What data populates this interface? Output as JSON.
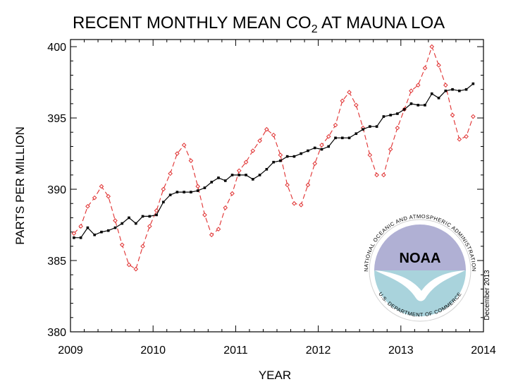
{
  "chart_data": {
    "type": "line",
    "title": "RECENT MONTHLY MEAN CO",
    "title_subscript": "2",
    "title_suffix": " AT MAUNA LOA",
    "xlabel": "YEAR",
    "ylabel": "PARTS PER MILLION",
    "xlim": [
      2009,
      2014
    ],
    "ylim": [
      380,
      400.5
    ],
    "xticks": [
      "2009",
      "2010",
      "2011",
      "2012",
      "2013",
      "2014"
    ],
    "yticks": [
      "380",
      "385",
      "390",
      "395",
      "400"
    ],
    "grid": false,
    "annotation": "December 2013",
    "logo": {
      "acronym": "NOAA",
      "ring_text": "NATIONAL OCEANIC AND ATMOSPHERIC ADMINISTRATION",
      "ring_text_bottom": "U.S. DEPARTMENT OF COMMERCE",
      "colors": {
        "top": "#b0b0d4",
        "bottom": "#a9d3dc",
        "ring": "#c8c8c8"
      }
    },
    "series": [
      {
        "style": "dashed-diamond",
        "color": "#e03030",
        "values": [
          386.9,
          387.4,
          388.8,
          389.4,
          390.2,
          389.5,
          387.8,
          386.1,
          384.7,
          384.4,
          386.0,
          387.4,
          388.5,
          390.0,
          391.1,
          392.5,
          393.1,
          392.0,
          390.2,
          388.2,
          386.8,
          387.2,
          388.7,
          389.7,
          391.3,
          391.9,
          392.7,
          393.4,
          394.2,
          393.8,
          392.4,
          390.3,
          389.0,
          388.9,
          390.3,
          391.8,
          393.1,
          393.7,
          394.5,
          396.2,
          396.8,
          395.9,
          394.3,
          392.4,
          391.0,
          391.0,
          392.8,
          394.3,
          395.6,
          396.9,
          397.3,
          398.5,
          400.0,
          398.7,
          397.3,
          395.2,
          393.5,
          393.7,
          395.1
        ]
      },
      {
        "style": "solid-square",
        "color": "#000000",
        "values": [
          386.6,
          386.6,
          387.3,
          386.8,
          387.0,
          387.1,
          387.3,
          387.6,
          388.0,
          387.6,
          388.1,
          388.1,
          388.2,
          389.1,
          389.6,
          389.8,
          389.8,
          389.8,
          389.9,
          390.1,
          390.5,
          390.8,
          390.6,
          391.0,
          391.0,
          391.0,
          390.7,
          391.0,
          391.4,
          391.9,
          392.0,
          392.3,
          392.3,
          392.5,
          392.7,
          392.9,
          392.8,
          393.0,
          393.6,
          393.6,
          393.6,
          393.9,
          394.2,
          394.4,
          394.4,
          395.1,
          395.2,
          395.3,
          395.6,
          396.0,
          395.9,
          395.9,
          396.7,
          396.4,
          396.9,
          397.0,
          396.9,
          397.0,
          397.4
        ]
      }
    ]
  }
}
